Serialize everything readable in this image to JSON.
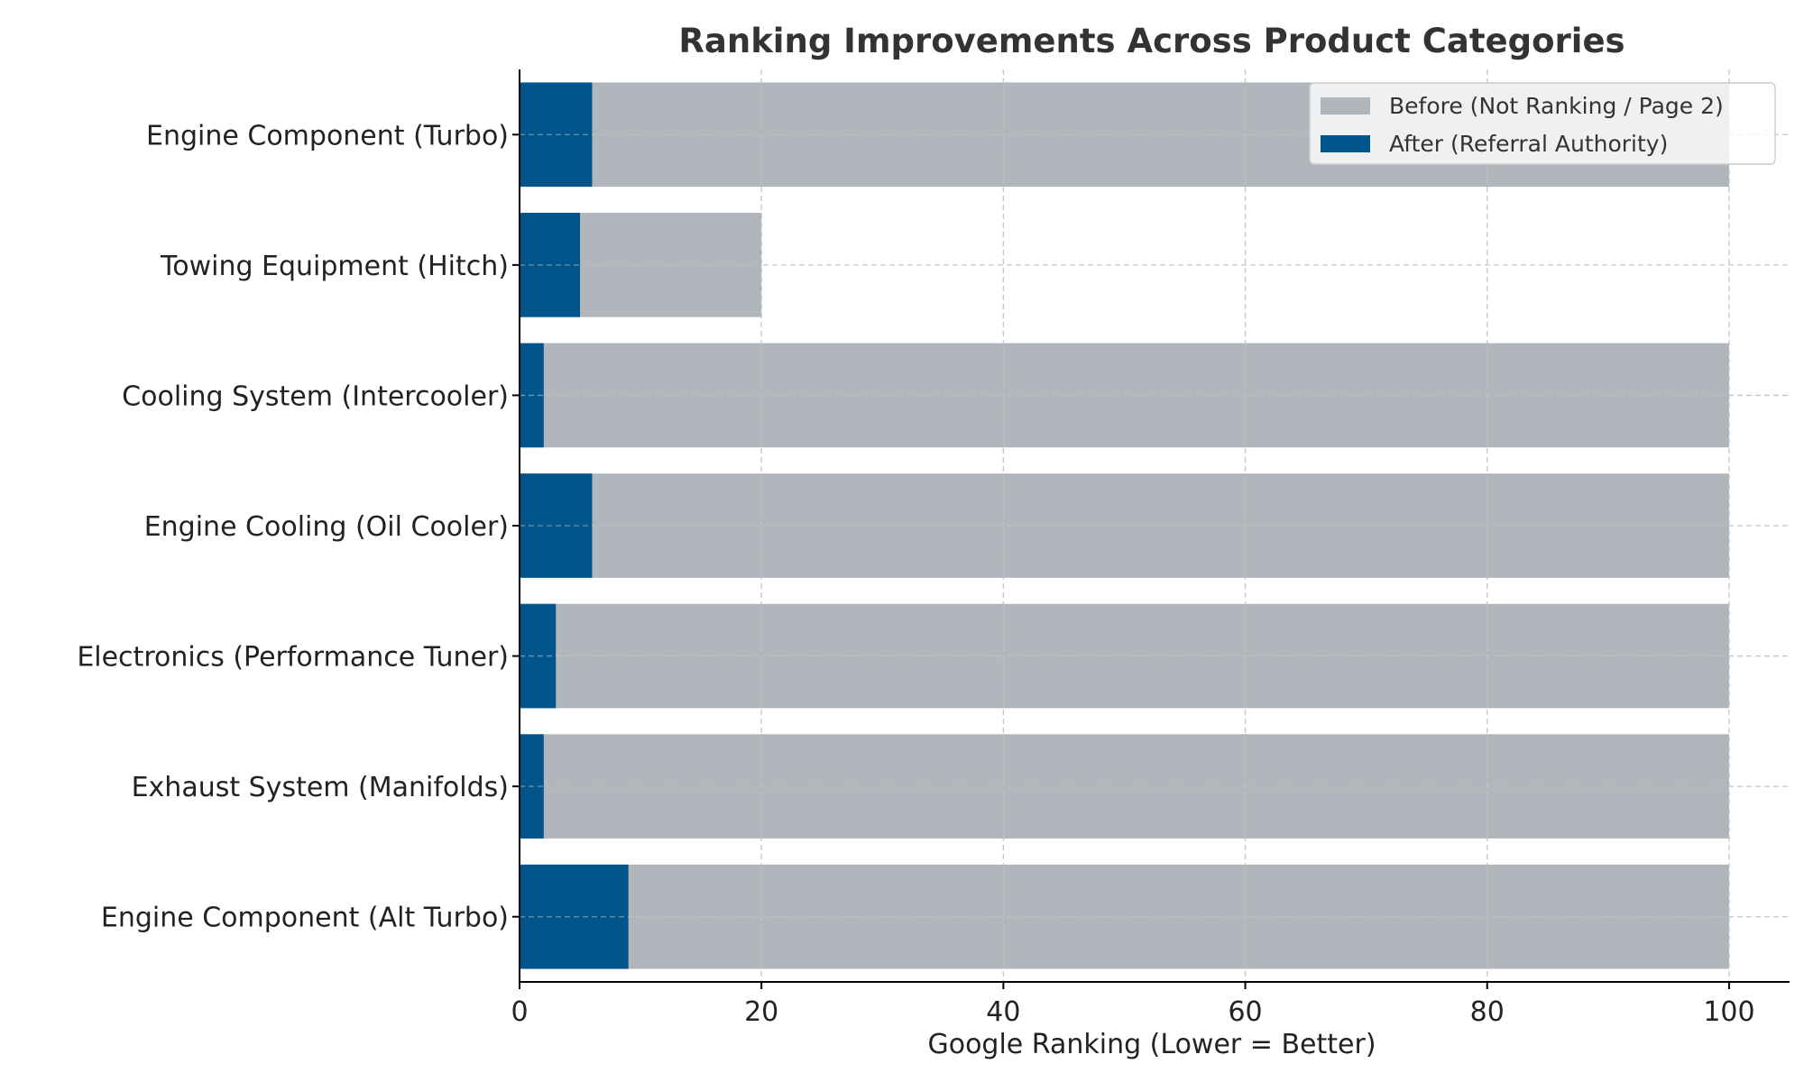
{
  "chart_data": {
    "type": "bar",
    "orientation": "horizontal",
    "stacking": "overlay",
    "title": "Ranking Improvements Across Product Categories",
    "xlabel": "Google Ranking (Lower = Better)",
    "ylabel": "",
    "categories": [
      "Engine Component (Turbo)",
      "Towing Equipment (Hitch)",
      "Cooling System (Intercooler)",
      "Engine Cooling (Oil Cooler)",
      "Electronics (Performance Tuner)",
      "Exhaust System (Manifolds)",
      "Engine Component (Alt Turbo)"
    ],
    "series": [
      {
        "name": "Before (Not Ranking / Page 2)",
        "color": "#b0b6bb",
        "values": [
          100,
          20,
          100,
          100,
          100,
          100,
          100
        ]
      },
      {
        "name": "After (Referral Authority)",
        "color": "#00568c",
        "values": [
          6,
          5,
          2,
          6,
          3,
          2,
          9
        ]
      }
    ],
    "xlim": [
      0,
      105
    ],
    "xticks": [
      0,
      20,
      40,
      60,
      80,
      100
    ],
    "xtick_labels": [
      "0",
      "20",
      "40",
      "60",
      "80",
      "100"
    ],
    "grid": true,
    "legend_position": "top-right"
  }
}
